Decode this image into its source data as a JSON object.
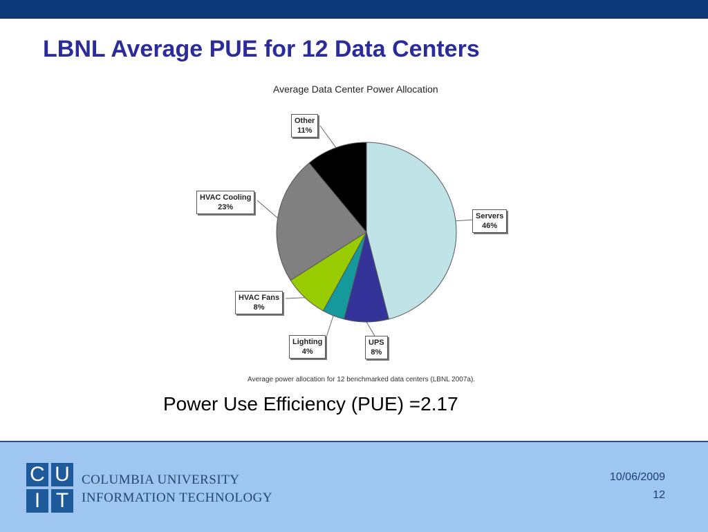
{
  "slide": {
    "title": "LBNL Average PUE for 12 Data Centers",
    "pue_text": "Power Use Efficiency (PUE) =2.17",
    "date": "10/06/2009",
    "page_number": "12"
  },
  "logo": {
    "letters": [
      "C",
      "U",
      "I",
      "T"
    ],
    "line1": "COLUMBIA UNIVERSITY",
    "line2": "INFORMATION TECHNOLOGY",
    "color": "#1f5a9a"
  },
  "chart_data": {
    "type": "pie",
    "title": "Average Data Center Power Allocation",
    "caption": "Average power allocation for 12 benchmarked data centers (LBNL 2007a).",
    "slices": [
      {
        "label": "Servers",
        "value": 46,
        "pct_label": "46%",
        "color": "#bfe3e6"
      },
      {
        "label": "UPS",
        "value": 8,
        "pct_label": "8%",
        "color": "#33339a"
      },
      {
        "label": "Lighting",
        "value": 4,
        "pct_label": "4%",
        "color": "#16999a"
      },
      {
        "label": "HVAC Fans",
        "value": 8,
        "pct_label": "8%",
        "color": "#99cc00"
      },
      {
        "label": "HVAC Cooling",
        "value": 23,
        "pct_label": "23%",
        "color": "#808080"
      },
      {
        "label": "Other",
        "value": 11,
        "pct_label": "11%",
        "color": "#000000"
      }
    ]
  }
}
